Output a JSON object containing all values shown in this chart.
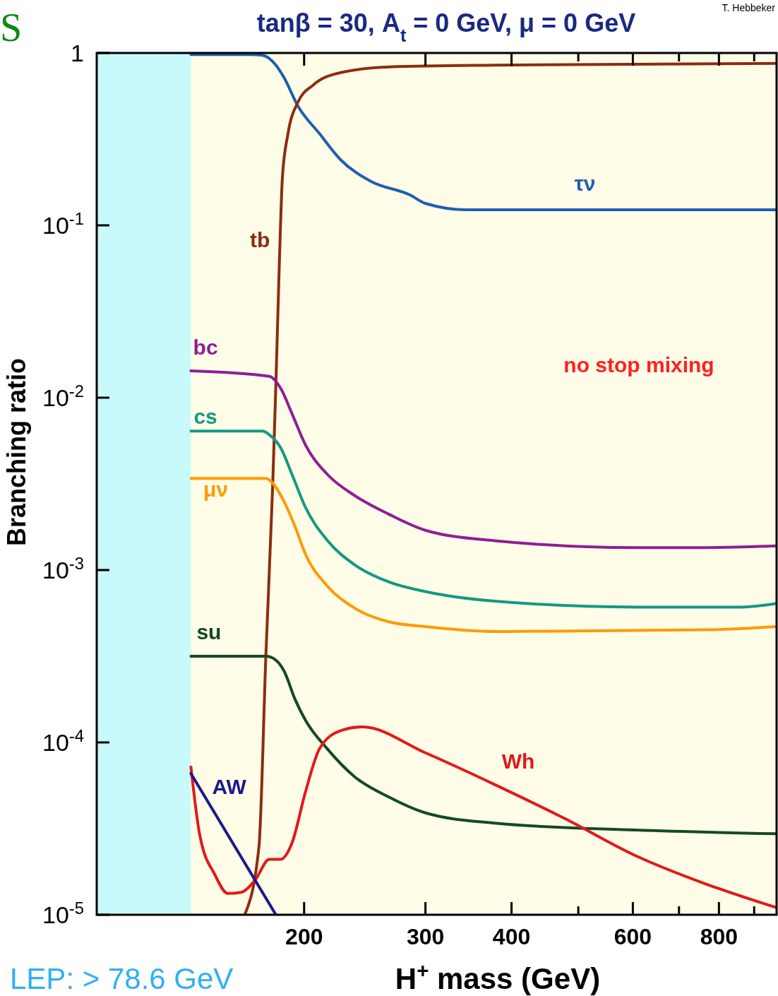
{
  "chart_data": {
    "type": "line",
    "title": "tanβ = 30,  A$_{t}$ = 0 GeV,  μ = 0 GeV",
    "xlabel": "H$^{+}$ mass (GeV)",
    "ylabel": "Branching ratio",
    "log": "xy",
    "xlim": [
      100,
      970
    ],
    "ylim": [
      1e-05,
      1
    ],
    "xticks": [
      200,
      300,
      400,
      {
        "value": 500,
        "label": null
      },
      600,
      {
        "value": 700,
        "label": null
      },
      800,
      {
        "value": 900,
        "label": null
      }
    ],
    "yticks": [
      {
        "value": 1e-05,
        "label": "10$^{-5}$"
      },
      {
        "value": 0.0001,
        "label": "10$^{-4}$"
      },
      {
        "value": 0.001,
        "label": "10$^{-3}$"
      },
      {
        "value": 0.01,
        "label": "10$^{-2}$"
      },
      {
        "value": 0.1,
        "label": "10$^{-1}$"
      },
      1
    ],
    "bands": [
      {
        "axis": "x",
        "from": 100,
        "to": 137,
        "color": "#c8fafc"
      }
    ],
    "annotations": [
      "no stop mixing",
      "LEP: > 78.6 GeV",
      "T. Hebbeker",
      "S"
    ],
    "series": [
      {
        "name": "τν",
        "color": "#1f5fb0",
        "x": [
          137,
          166.7,
          174,
          182,
          187,
          196,
          210.6,
          226,
          250,
          285,
          300,
          345,
          970
        ],
        "values": [
          0.98,
          0.98,
          0.97,
          0.85,
          0.72,
          0.49,
          0.34,
          0.24,
          0.18,
          0.15,
          0.134,
          0.123,
          0.123
        ]
      },
      {
        "name": "tb",
        "color": "#8b2d0f",
        "x": [
          164,
          172,
          176,
          180,
          182,
          184,
          186,
          189.5,
          196,
          206,
          226,
          266,
          378,
          970
        ],
        "values": [
          1e-05,
          2.5e-05,
          0.00032,
          0.003,
          0.012,
          0.056,
          0.19,
          0.34,
          0.52,
          0.65,
          0.77,
          0.83,
          0.85,
          0.87
        ]
      },
      {
        "name": "bc",
        "color": "#8e1f94",
        "x": [
          137,
          178,
          185,
          192,
          201,
          216,
          237,
          266,
          300,
          378,
          606,
          769,
          970
        ],
        "values": [
          0.0143,
          0.0133,
          0.0113,
          0.0081,
          0.0053,
          0.0036,
          0.0027,
          0.0021,
          0.0017,
          0.00148,
          0.00135,
          0.00135,
          0.00138
        ]
      },
      {
        "name": "cs",
        "color": "#119a80",
        "x": [
          137,
          174,
          178,
          185,
          192,
          201,
          216,
          237,
          266,
          300,
          378,
          606,
          865,
          970
        ],
        "values": [
          0.0064,
          0.0064,
          0.0061,
          0.0051,
          0.0036,
          0.0023,
          0.00149,
          0.00107,
          0.00085,
          0.00075,
          0.00066,
          0.00061,
          0.00061,
          0.00064
        ]
      },
      {
        "name": "μν",
        "color": "#ff9a00",
        "x": [
          137,
          176,
          180,
          187,
          194,
          201,
          216,
          237,
          266,
          300,
          378,
          769,
          970
        ],
        "values": [
          0.0034,
          0.0034,
          0.0032,
          0.0025,
          0.00179,
          0.00123,
          0.00081,
          0.0006,
          0.0005,
          0.00047,
          0.00044,
          0.00045,
          0.00047
        ]
      },
      {
        "name": "su",
        "color": "#144a22",
        "x": [
          137,
          176,
          182,
          187,
          194,
          201,
          216,
          237,
          266,
          300,
          378,
          606,
          970
        ],
        "values": [
          0.000316,
          0.000316,
          0.0003,
          0.00026,
          0.000178,
          0.000134,
          9.2e-05,
          6.3e-05,
          4.8e-05,
          3.9e-05,
          3.4e-05,
          3.1e-05,
          2.95e-05
        ]
      },
      {
        "name": "Wh",
        "color": "#e01a1a",
        "x": [
          137,
          141,
          148.5,
          155,
          162,
          170,
          178,
          185,
          192,
          201,
          210.6,
          226,
          243,
          300,
          378,
          479,
          606,
          769,
          970
        ],
        "values": [
          7.2e-05,
          2.95e-05,
          1.7e-05,
          1.33e-05,
          1.35e-05,
          1.6e-05,
          2.1e-05,
          2.1e-05,
          2.6e-05,
          5.2e-05,
          9.2e-05,
          0.000117,
          0.000123,
          8.7e-05,
          5.7e-05,
          3.6e-05,
          2.2e-05,
          1.5e-05,
          1.1e-05
        ]
      },
      {
        "name": "AW",
        "color": "#1a1a8a",
        "x": [
          137,
          182
        ],
        "values": [
          6.6e-05,
          1e-05
        ]
      }
    ]
  }
}
